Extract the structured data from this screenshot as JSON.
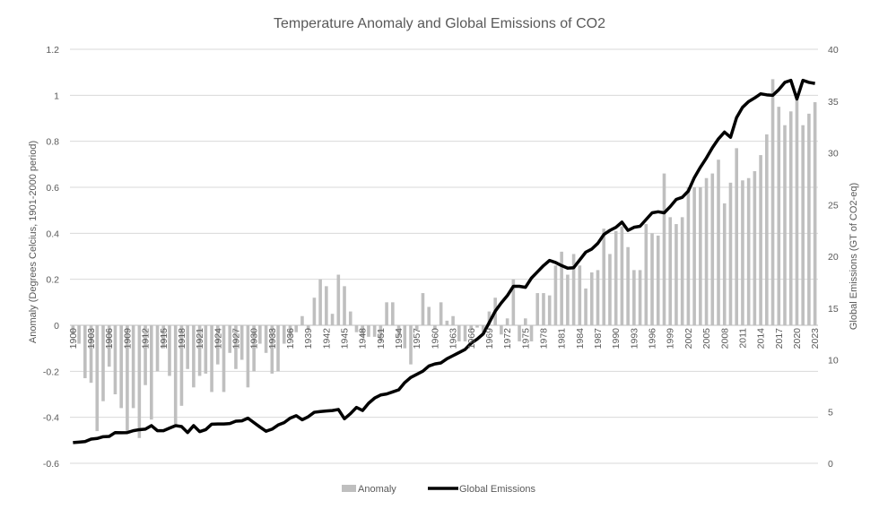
{
  "chart_data": {
    "type": "bar+line",
    "title": "Temperature Anomaly and Global Emissions of CO2",
    "ylabel_left": "Anomaly (Degrees Celcius, 1901-2000 period)",
    "ylabel_right": "Global Emissions (GT of CO2-eq)",
    "ylim_left": [
      -0.6,
      1.2
    ],
    "ylim_right": [
      0,
      40
    ],
    "y_ticks_left": [
      "1.2",
      "1",
      "0.8",
      "0.6",
      "0.4",
      "0.2",
      "0",
      "-0.2",
      "-0.4",
      "-0.6"
    ],
    "y_ticks_right": [
      "40",
      "35",
      "30",
      "25",
      "20",
      "15",
      "10",
      "5",
      "0"
    ],
    "grid": true,
    "legend_position": "bottom",
    "colors": {
      "anomaly": "#bfbfbf",
      "emissions": "#000000",
      "grid": "#d9d9d9",
      "text": "#595959"
    },
    "x_tick_labels": [
      "1900",
      "1903",
      "1906",
      "1909",
      "1912",
      "1915",
      "1918",
      "1921",
      "1924",
      "1927",
      "1930",
      "1933",
      "1936",
      "1939",
      "1942",
      "1945",
      "1948",
      "1951",
      "1954",
      "1957",
      "1960",
      "1963",
      "1966",
      "1969",
      "1972",
      "1975",
      "1978",
      "1981",
      "1984",
      "1987",
      "1990",
      "1993",
      "1996",
      "1999",
      "2002",
      "2005",
      "2008",
      "2011",
      "2014",
      "2017",
      "2020",
      "2023"
    ],
    "year_start": 1900,
    "series": [
      {
        "name": "Anomaly",
        "type": "bar",
        "axis": "left",
        "values": [
          -0.04,
          -0.08,
          -0.23,
          -0.25,
          -0.46,
          -0.33,
          -0.18,
          -0.3,
          -0.36,
          -0.46,
          -0.36,
          -0.49,
          -0.26,
          -0.41,
          -0.2,
          -0.1,
          -0.22,
          -0.43,
          -0.35,
          -0.19,
          -0.27,
          -0.22,
          -0.21,
          -0.29,
          -0.17,
          -0.29,
          -0.12,
          -0.19,
          -0.15,
          -0.27,
          -0.2,
          -0.08,
          -0.12,
          -0.21,
          -0.2,
          -0.08,
          -0.06,
          -0.03,
          0.04,
          -0.02,
          0.12,
          0.2,
          0.17,
          0.05,
          0.22,
          0.17,
          0.06,
          -0.03,
          -0.05,
          -0.05,
          -0.05,
          -0.07,
          0.1,
          0.1,
          -0.05,
          -0.1,
          -0.17,
          -0.02,
          0.14,
          0.08,
          -0.02,
          0.1,
          0.02,
          0.04,
          -0.07,
          -0.07,
          -0.02,
          -0.01,
          -0.03,
          0.06,
          0.12,
          -0.04,
          0.03,
          0.2,
          -0.07,
          0.03,
          -0.07,
          0.14,
          0.14,
          0.13,
          0.26,
          0.32,
          0.22,
          0.31,
          0.26,
          0.16,
          0.23,
          0.24,
          0.42,
          0.31,
          0.41,
          0.43,
          0.34,
          0.24,
          0.24,
          0.44,
          0.4,
          0.39,
          0.66,
          0.47,
          0.44,
          0.47,
          0.6,
          0.6,
          0.6,
          0.64,
          0.66,
          0.72,
          0.53,
          0.62,
          0.77,
          0.63,
          0.64,
          0.67,
          0.74,
          0.83,
          1.07,
          0.95,
          0.87,
          0.93,
          0.98,
          0.87,
          0.92,
          0.97
        ]
      },
      {
        "name": "Global Emissions",
        "type": "line",
        "axis": "right",
        "values": [
          2.0,
          2.05,
          2.1,
          2.34,
          2.4,
          2.57,
          2.6,
          2.97,
          2.95,
          2.97,
          3.15,
          3.25,
          3.3,
          3.64,
          3.15,
          3.15,
          3.4,
          3.64,
          3.55,
          2.97,
          3.64,
          3.06,
          3.25,
          3.78,
          3.8,
          3.8,
          3.84,
          4.07,
          4.1,
          4.36,
          3.93,
          3.5,
          3.1,
          3.3,
          3.7,
          3.93,
          4.36,
          4.6,
          4.2,
          4.5,
          4.93,
          5.0,
          5.05,
          5.1,
          5.2,
          4.3,
          4.8,
          5.4,
          5.1,
          5.8,
          6.3,
          6.6,
          6.7,
          6.9,
          7.1,
          7.8,
          8.3,
          8.6,
          8.9,
          9.4,
          9.6,
          9.7,
          10.1,
          10.4,
          10.7,
          11.0,
          11.6,
          12.0,
          12.5,
          13.6,
          14.7,
          15.5,
          16.2,
          17.1,
          17.1,
          17.0,
          17.9,
          18.5,
          19.1,
          19.6,
          19.4,
          19.1,
          18.85,
          18.9,
          19.65,
          20.4,
          20.7,
          21.25,
          22.1,
          22.5,
          22.8,
          23.3,
          22.5,
          22.8,
          22.9,
          23.55,
          24.2,
          24.3,
          24.2,
          24.8,
          25.5,
          25.7,
          26.3,
          27.6,
          28.6,
          29.5,
          30.5,
          31.35,
          32.0,
          31.5,
          33.4,
          34.4,
          34.95,
          35.3,
          35.7,
          35.6,
          35.55,
          36.1,
          36.8,
          37.0,
          35.2,
          37.0,
          36.8,
          36.7
        ]
      }
    ]
  }
}
